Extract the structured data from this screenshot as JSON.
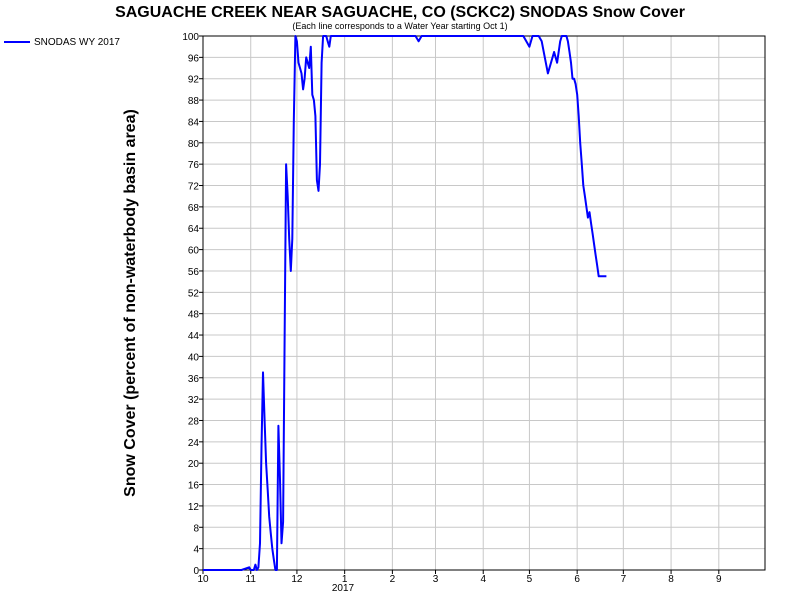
{
  "chart_data": {
    "type": "line",
    "title": "SAGUACHE CREEK NEAR SAGUACHE, CO (SCKC2) SNODAS Snow Cover",
    "subtitle": "(Each line corresponds to a Water Year starting Oct 1)",
    "xlabel": "",
    "ylabel": "Snow Cover (percent of non-waterbody basin area)",
    "x_tick_labels": [
      "10",
      "11",
      "12",
      "1",
      "2",
      "3",
      "4",
      "5",
      "6",
      "7",
      "8",
      "9"
    ],
    "x_year_label": "2017",
    "y_ticks": [
      0,
      4,
      8,
      12,
      16,
      20,
      24,
      28,
      32,
      36,
      40,
      44,
      48,
      52,
      56,
      60,
      64,
      68,
      72,
      76,
      80,
      84,
      88,
      92,
      96,
      100
    ],
    "ylim": [
      0,
      100
    ],
    "xlim": [
      0,
      365
    ],
    "grid": true,
    "legend_position": "top-left",
    "series": [
      {
        "name": "SNODAS WY 2017",
        "color": "#0000ff",
        "x": [
          0,
          5,
          10,
          15,
          20,
          25,
          30,
          31,
          33,
          34,
          35,
          36,
          37,
          38,
          39,
          40,
          41,
          42,
          43,
          44,
          45,
          46,
          47,
          48,
          49,
          50,
          51,
          52,
          53,
          54,
          55,
          56,
          57,
          58,
          59,
          60,
          61,
          62,
          63,
          64,
          65,
          66,
          67,
          68,
          69,
          70,
          71,
          72,
          73,
          74,
          75,
          76,
          77,
          78,
          79,
          80,
          81,
          82,
          83,
          84,
          85,
          86,
          87,
          88,
          89,
          90,
          91,
          92,
          93,
          95,
          97,
          100,
          105,
          110,
          115,
          120,
          125,
          130,
          135,
          138,
          140,
          142,
          145,
          150,
          155,
          160,
          165,
          170,
          175,
          180,
          185,
          190,
          195,
          198,
          200,
          202,
          205,
          208,
          210,
          212,
          214,
          216,
          218,
          220,
          222,
          224,
          226,
          228,
          230,
          232,
          233,
          234,
          235,
          236,
          237,
          238,
          239,
          240,
          241,
          242,
          243,
          244,
          245,
          246,
          247,
          248,
          249,
          250,
          251,
          252,
          253,
          254,
          255,
          256,
          257,
          258,
          259,
          260,
          261,
          262
        ],
        "y": [
          0,
          0,
          0,
          0,
          0,
          0,
          0.5,
          0,
          0,
          1,
          0,
          0.5,
          5,
          23,
          37,
          28,
          20,
          15,
          10,
          7,
          4,
          2,
          0,
          0,
          27,
          17,
          5,
          9,
          43,
          76,
          70,
          62,
          56,
          62,
          84,
          100,
          99,
          95,
          94,
          93,
          90,
          92,
          96,
          95,
          94,
          98,
          89,
          88,
          85,
          73,
          71,
          76,
          95,
          100,
          100,
          100,
          99,
          98,
          100,
          100,
          100,
          100,
          100,
          100,
          100,
          100,
          100,
          100,
          100,
          100,
          100,
          100,
          100,
          100,
          100,
          100,
          100,
          100,
          100,
          100,
          99,
          100,
          100,
          100,
          100,
          100,
          100,
          100,
          100,
          100,
          100,
          100,
          100,
          100,
          100,
          100,
          100,
          100,
          99,
          98,
          100,
          100,
          100,
          99,
          96,
          93,
          95,
          97,
          95,
          99,
          100,
          100,
          100,
          100,
          99,
          97,
          95,
          92,
          92,
          91,
          89,
          85,
          80,
          76,
          72,
          70,
          68,
          66,
          67,
          65,
          63,
          61,
          59,
          57,
          55,
          55,
          55,
          55,
          55,
          55
        ]
      }
    ]
  }
}
